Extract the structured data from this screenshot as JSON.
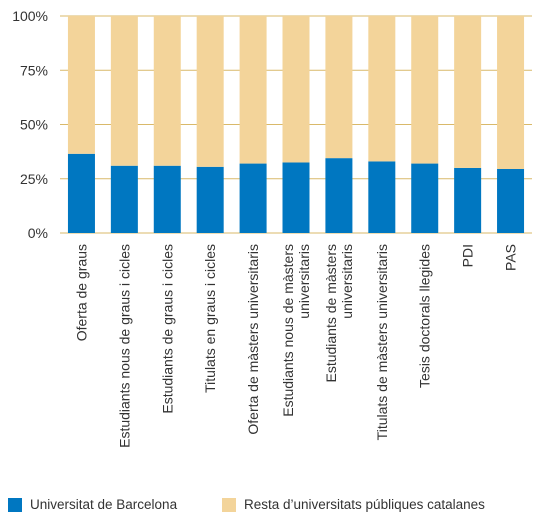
{
  "chart_data": {
    "type": "bar",
    "stacked": true,
    "categories": [
      "Oferta de graus",
      "Estudiants nous de graus i cicles",
      "Estudiants de graus i cicles",
      "Titulats en graus i cicles",
      "Oferta de màsters universitaris",
      "Estudiants nous de màsters universitaris",
      "Estudiants de màsters universitaris",
      "Titulats de màsters universitaris",
      "Tesis doctorals llegides",
      "PDI",
      "PAS"
    ],
    "series": [
      {
        "name": "Universitat de Barcelona",
        "color": "#0077c1",
        "values": [
          36.5,
          31,
          31,
          30.5,
          32,
          32.5,
          34.5,
          33,
          32,
          30,
          29.5
        ]
      },
      {
        "name": "Resta d’universitats públiques catalanes",
        "color": "#f3d49a",
        "values": [
          63.5,
          69,
          69,
          69.5,
          68,
          67.5,
          65.5,
          67,
          68,
          70,
          70.5
        ]
      }
    ],
    "ylim": [
      0,
      100
    ],
    "yticks": [
      "0%",
      "25%",
      "50%",
      "75%",
      "100%"
    ],
    "grid": true,
    "legend_position": "bottom"
  }
}
